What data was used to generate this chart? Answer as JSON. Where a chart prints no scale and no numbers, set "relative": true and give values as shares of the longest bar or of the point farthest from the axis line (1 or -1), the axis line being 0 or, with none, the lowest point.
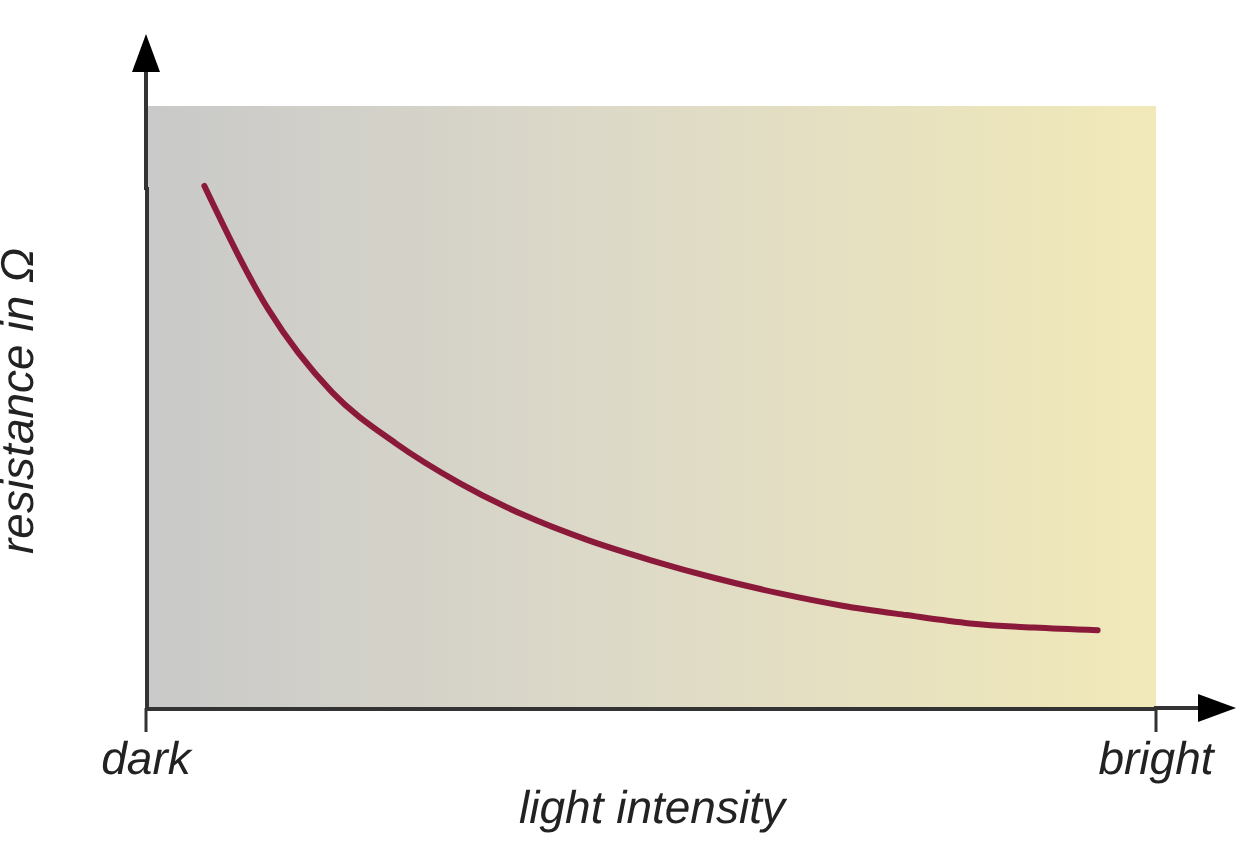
{
  "chart_data": {
    "type": "line",
    "xlabel": "light intensity",
    "ylabel": "resistance in Ω",
    "relative": true,
    "categories": [
      null,
      null,
      null,
      null,
      null,
      null,
      null,
      null,
      null,
      null,
      null,
      null,
      null,
      null,
      null
    ],
    "annotations": [
      "dark",
      "bright"
    ],
    "series": [
      {
        "color": "#8b1a3a",
        "values": [
          1,
          0.764,
          0.605,
          0.507,
          0.431,
          0.37,
          0.322,
          0.283,
          0.249,
          0.22,
          0.196,
          0.178,
          0.162,
          0.154,
          0.149
        ]
      }
    ]
  }
}
